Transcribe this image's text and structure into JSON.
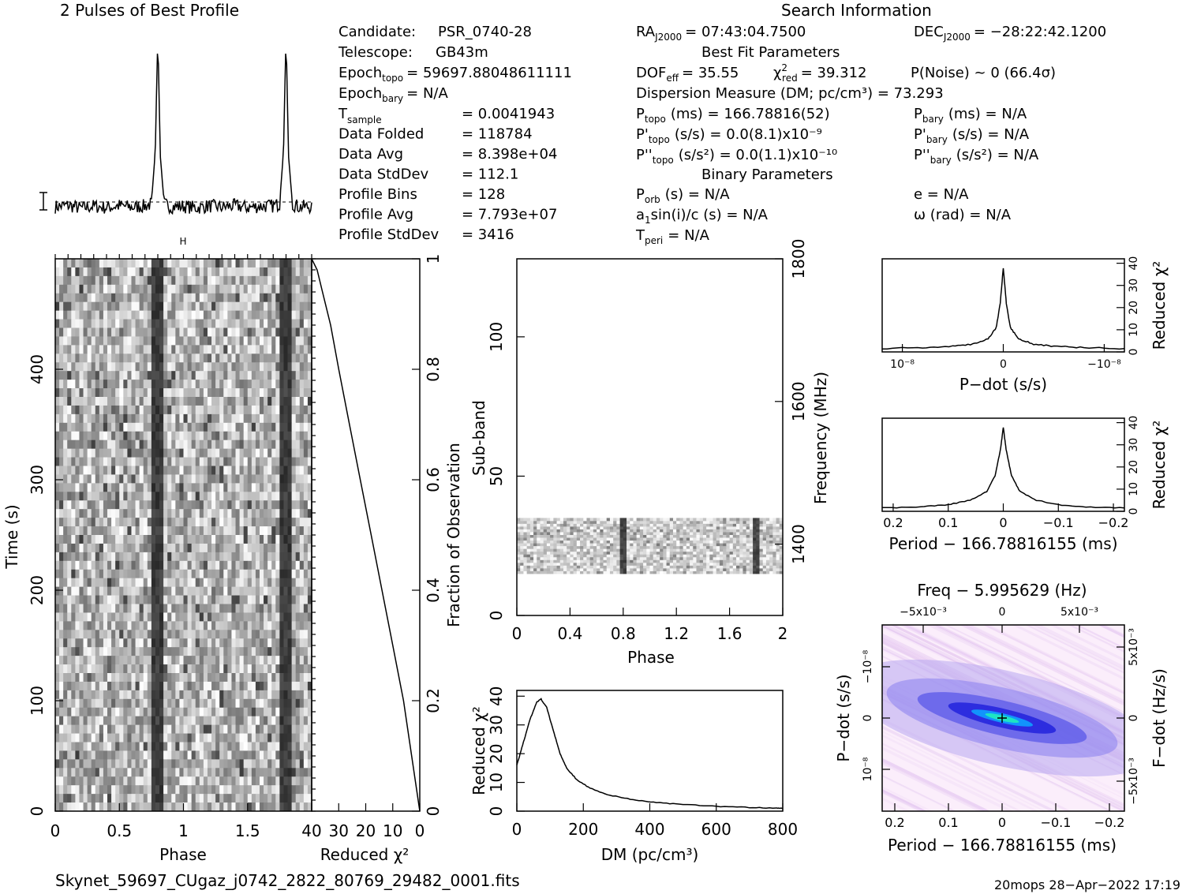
{
  "profile_title": "2 Pulses of Best Profile",
  "search_title": "Search Information",
  "candidate": {
    "label": "Candidate:",
    "value": "PSR_0740-28"
  },
  "telescope": {
    "label": "Telescope:",
    "value": "GB43m"
  },
  "epoch_topo": {
    "label": "Epoch",
    "sub": "topo",
    "value": "= 59697.88048611111"
  },
  "epoch_bary": {
    "label": "Epoch",
    "sub": "bary",
    "value": "= N/A"
  },
  "stats": [
    {
      "label": "T",
      "sub": "sample",
      "value": "=   0.0041943"
    },
    {
      "label": "Data Folded",
      "sub": "",
      "value": "=   118784"
    },
    {
      "label": "Data Avg",
      "sub": "",
      "value": "=   8.398e+04"
    },
    {
      "label": "Data StdDev",
      "sub": "",
      "value": "=   112.1"
    },
    {
      "label": "Profile Bins",
      "sub": "",
      "value": "=   128"
    },
    {
      "label": "Profile Avg",
      "sub": "",
      "value": "=   7.793e+07"
    },
    {
      "label": "Profile StdDev",
      "sub": "",
      "value": "=   3416"
    }
  ],
  "ra": {
    "label": "RA",
    "sub": "J2000",
    "value": "= 07:43:04.7500"
  },
  "dec": {
    "label": "DEC",
    "sub": "J2000",
    "value": "= −28:22:42.1200"
  },
  "best_fit_title": "Best Fit Parameters",
  "dof": {
    "label": "DOF",
    "sub": "eff",
    "value": "= 35.55"
  },
  "chi2": {
    "label": "χ",
    "sup": "2",
    "sub": "red",
    "value": "= 39.312"
  },
  "pnoise": "P(Noise) ~ 0    (66.4σ)",
  "dm_line": "Dispersion Measure (DM; pc/cm³) = 73.293",
  "p_topo": {
    "label": "P",
    "sub": "topo",
    "value": "(ms) =  166.78816(52)"
  },
  "pd_topo": {
    "label": "P'",
    "sub": "topo",
    "value": "(s/s) = 0.0(8.1)x10⁻⁹"
  },
  "pdd_topo": {
    "label": "P''",
    "sub": "topo",
    "value": "(s/s²) = 0.0(1.1)x10⁻¹⁰"
  },
  "p_bary": {
    "label": "P",
    "sub": "bary",
    "value": "(ms) = N/A"
  },
  "pd_bary": {
    "label": "P'",
    "sub": "bary",
    "value": "(s/s) = N/A"
  },
  "pdd_bary": {
    "label": "P''",
    "sub": "bary",
    "value": "(s/s²) = N/A"
  },
  "binary_title": "Binary Parameters",
  "p_orb": {
    "label": "P",
    "sub": "orb",
    "value": "(s) = N/A"
  },
  "a1sini": {
    "label": "a",
    "sub": "1",
    "value": "sin(i)/c (s) = N/A"
  },
  "t_peri": {
    "label": "T",
    "sub": "peri",
    "value": "= N/A"
  },
  "ecc": "e = N/A",
  "omega": "ω (rad) = N/A",
  "footer_file": "Skynet_59697_CUgaz_j0742_2822_80769_29482_0001.fits",
  "footer_stamp": "20mops 28−Apr−2022 17:19",
  "chart_data": [
    {
      "type": "line",
      "name": "profile",
      "title": "2 Pulses of Best Profile",
      "x": [
        0,
        0.1,
        0.2,
        0.3,
        0.4,
        0.5,
        0.6,
        0.7,
        0.75,
        0.78,
        0.8,
        0.82,
        0.85,
        0.9,
        1.0,
        1.1,
        1.2,
        1.3,
        1.4,
        1.5,
        1.6,
        1.7,
        1.75,
        1.78,
        1.8,
        1.82,
        1.85,
        1.9,
        2.0
      ],
      "values": [
        0,
        0.5,
        -0.5,
        0.2,
        -0.3,
        0.4,
        -0.2,
        0.3,
        1,
        20,
        62,
        18,
        1,
        0,
        0.2,
        -0.4,
        0.3,
        -0.2,
        0.4,
        -0.3,
        0.2,
        0.3,
        1,
        20,
        62,
        18,
        1,
        0,
        0
      ]
    },
    {
      "type": "heatmap",
      "name": "time-phase",
      "xlabel": "Phase",
      "ylabel": "Time (s)",
      "xlim": [
        0,
        2
      ],
      "ylim": [
        0,
        500
      ],
      "xticks": [
        "0",
        "0.5",
        "1",
        "1.5"
      ],
      "yticks": [
        "0",
        "100",
        "200",
        "300",
        "400"
      ],
      "pulse_phase": [
        0.8,
        1.8
      ]
    },
    {
      "type": "line",
      "name": "reduced-chi2-vs-fraction",
      "xlabel": "Reduced χ²",
      "ylabel": "Fraction of Observation",
      "xticks": [
        "40",
        "30",
        "20",
        "10",
        "0"
      ],
      "yticks": [
        "0",
        "0.2",
        "0.4",
        "0.6",
        "0.8",
        "1"
      ],
      "xlim": [
        40,
        0
      ],
      "ylim": [
        0,
        1
      ],
      "x": [
        0,
        3,
        6,
        10,
        14,
        18,
        22,
        26,
        30,
        33,
        36,
        38,
        40
      ],
      "y": [
        0,
        0.1,
        0.2,
        0.3,
        0.4,
        0.5,
        0.6,
        0.7,
        0.8,
        0.88,
        0.94,
        0.98,
        1.0
      ]
    },
    {
      "type": "heatmap",
      "name": "subband-phase",
      "xlabel": "Phase",
      "ylabel": "Sub-band",
      "y2label": "Frequency (MHz)",
      "xlim": [
        0,
        2
      ],
      "ylim": [
        0,
        128
      ],
      "xticks": [
        "0",
        "0.4",
        "0.8",
        "1.2",
        "1.6",
        "2"
      ],
      "yticks": [
        "0",
        "50",
        "100"
      ],
      "y2ticks": [
        "1400",
        "1600",
        "1800"
      ],
      "band_rows": [
        15,
        35
      ],
      "pulse_phase": [
        0.8,
        1.8
      ]
    },
    {
      "type": "line",
      "name": "dm-curve",
      "xlabel": "DM (pc/cm³)",
      "ylabel": "Reduced χ²",
      "xlim": [
        0,
        800
      ],
      "ylim": [
        0,
        42
      ],
      "xticks": [
        "0",
        "200",
        "400",
        "600",
        "800"
      ],
      "yticks": [
        "0",
        "10",
        "20",
        "30",
        "40"
      ],
      "x": [
        0,
        20,
        40,
        60,
        73,
        90,
        110,
        130,
        150,
        180,
        220,
        280,
        350,
        420,
        500,
        600,
        700,
        780,
        800
      ],
      "values": [
        16,
        24,
        32,
        38,
        39,
        36,
        28,
        20,
        15,
        11,
        8,
        5.5,
        4,
        3,
        2.3,
        1.7,
        1.3,
        1.1,
        1.0
      ]
    },
    {
      "type": "line",
      "name": "pdot-curve",
      "xlabel": "P−dot (s/s)",
      "ylabel": "Reduced χ²",
      "xlim": [
        1.2,
        -1.2
      ],
      "ylim": [
        0,
        42
      ],
      "xticks": [
        "10⁻⁸",
        "0",
        "−10⁻⁸"
      ],
      "yticks": [
        "0",
        "10",
        "20",
        "30",
        "40"
      ],
      "x": [
        1.2,
        0.8,
        0.5,
        0.3,
        0.15,
        0.07,
        0.03,
        0,
        -0.03,
        -0.07,
        -0.15,
        -0.3,
        -0.5,
        -0.8,
        -1.2
      ],
      "values": [
        1.5,
        2,
        2.5,
        3.5,
        6,
        11,
        22,
        38,
        22,
        11,
        6,
        3.5,
        2.5,
        2,
        1.5
      ]
    },
    {
      "type": "line",
      "name": "period-curve",
      "xlabel": "Period − 166.78816155 (ms)",
      "ylabel": "Reduced χ²",
      "xlim": [
        0.22,
        -0.22
      ],
      "ylim": [
        0,
        42
      ],
      "xticks": [
        "0.2",
        "0.1",
        "0",
        "−0.1",
        "−0.2"
      ],
      "yticks": [
        "0",
        "10",
        "20",
        "30",
        "40"
      ],
      "x": [
        0.22,
        0.15,
        0.1,
        0.06,
        0.03,
        0.015,
        0.005,
        0,
        -0.005,
        -0.015,
        -0.03,
        -0.06,
        -0.1,
        -0.15,
        -0.22
      ],
      "values": [
        1.5,
        2,
        3,
        5,
        9,
        16,
        28,
        38,
        28,
        16,
        9,
        5,
        3,
        2,
        1.5
      ]
    },
    {
      "type": "heatmap",
      "name": "period-pdot-plane",
      "title": "Freq − 5.995629 (Hz)",
      "xlabel": "Period − 166.78816155 (ms)",
      "ylabel": "P−dot (s/s)",
      "y2label": "F−dot (Hz/s)",
      "xticks": [
        "0.2",
        "0.1",
        "0",
        "−0.1",
        "−0.2"
      ],
      "x2ticks": [
        "−5x10⁻³",
        "0",
        "5x10⁻³"
      ],
      "yticks": [
        "10⁻⁸",
        "0",
        "−10⁻⁸"
      ],
      "y2ticks": [
        "−5x10⁻³",
        "0",
        "5x10⁻³"
      ]
    }
  ]
}
